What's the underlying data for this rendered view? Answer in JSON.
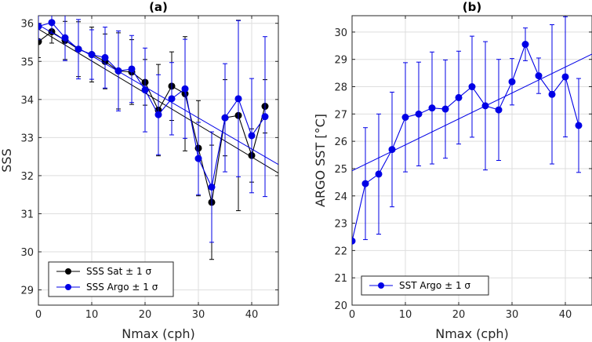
{
  "chart_data": [
    {
      "type": "line",
      "panel": "(a)",
      "title": "(a)",
      "xlabel": "Nmax (cph)",
      "ylabel": "SSS",
      "xlim": [
        0,
        45
      ],
      "ylim": [
        28.6,
        36.2
      ],
      "xticks": [
        0,
        10,
        20,
        30,
        40
      ],
      "yticks": [
        29,
        30,
        31,
        32,
        33,
        34,
        35,
        36
      ],
      "grid": true,
      "legend_position": "bottom-left",
      "x": [
        0,
        2.5,
        5,
        7.5,
        10,
        12.5,
        15,
        17.5,
        20,
        22.5,
        25,
        27.5,
        30,
        32.5,
        35,
        37.5,
        40,
        42.5
      ],
      "series": [
        {
          "name": "SSS Sat ± 1 σ",
          "color": "#000000",
          "values": [
            35.52,
            35.78,
            35.55,
            35.32,
            35.18,
            35.0,
            34.75,
            34.72,
            34.45,
            33.72,
            34.35,
            34.15,
            32.72,
            31.3,
            33.52,
            33.58,
            32.53,
            33.82
          ],
          "errors": [
            0.42,
            0.3,
            0.5,
            0.72,
            0.72,
            0.72,
            1.0,
            0.85,
            0.6,
            1.2,
            0.9,
            1.5,
            1.25,
            1.5,
            1.0,
            2.5,
            0.7,
            0.7
          ],
          "fit": {
            "start": 35.85,
            "slope": -0.084
          }
        },
        {
          "name": "SSS Argo ± 1 σ",
          "color": "#0000e6",
          "values": [
            35.92,
            36.02,
            35.62,
            35.32,
            35.18,
            35.1,
            34.75,
            34.8,
            34.25,
            33.6,
            34.02,
            34.28,
            32.45,
            31.7,
            33.52,
            34.02,
            33.05,
            33.55
          ],
          "errors": [
            0.35,
            0.28,
            0.6,
            0.78,
            0.65,
            0.8,
            1.05,
            0.88,
            1.1,
            1.05,
            0.95,
            1.3,
            0.95,
            1.45,
            1.42,
            2.05,
            1.5,
            2.1
          ],
          "fit": {
            "start": 35.96,
            "slope": -0.0815
          }
        }
      ]
    },
    {
      "type": "line",
      "panel": "(b)",
      "title": "(b)",
      "xlabel": "Nmax (cph)",
      "ylabel": "ARGO SST [°C]",
      "xlim": [
        0,
        45
      ],
      "ylim": [
        20,
        30.6
      ],
      "xticks": [
        0,
        10,
        20,
        30,
        40
      ],
      "yticks": [
        20,
        21,
        22,
        23,
        24,
        25,
        26,
        27,
        28,
        29,
        30
      ],
      "grid": true,
      "legend_position": "bottom-left",
      "x": [
        0,
        2.5,
        5,
        7.5,
        10,
        12.5,
        15,
        17.5,
        20,
        22.5,
        25,
        27.5,
        30,
        32.5,
        35,
        37.5,
        40,
        42.5
      ],
      "series": [
        {
          "name": "SST Argo ± 1 σ",
          "color": "#0000e6",
          "values": [
            22.35,
            24.45,
            24.8,
            25.7,
            26.88,
            27.0,
            27.22,
            27.18,
            27.6,
            28.0,
            27.3,
            27.15,
            28.18,
            29.55,
            28.4,
            27.72,
            28.36,
            26.58
          ],
          "errors": [
            0.0,
            2.05,
            2.2,
            2.1,
            2.0,
            1.9,
            2.05,
            1.8,
            1.7,
            1.85,
            2.35,
            1.85,
            0.85,
            0.6,
            0.65,
            2.55,
            2.2,
            1.72
          ],
          "fit": {
            "start": 24.92,
            "slope": 0.095
          }
        }
      ]
    }
  ]
}
